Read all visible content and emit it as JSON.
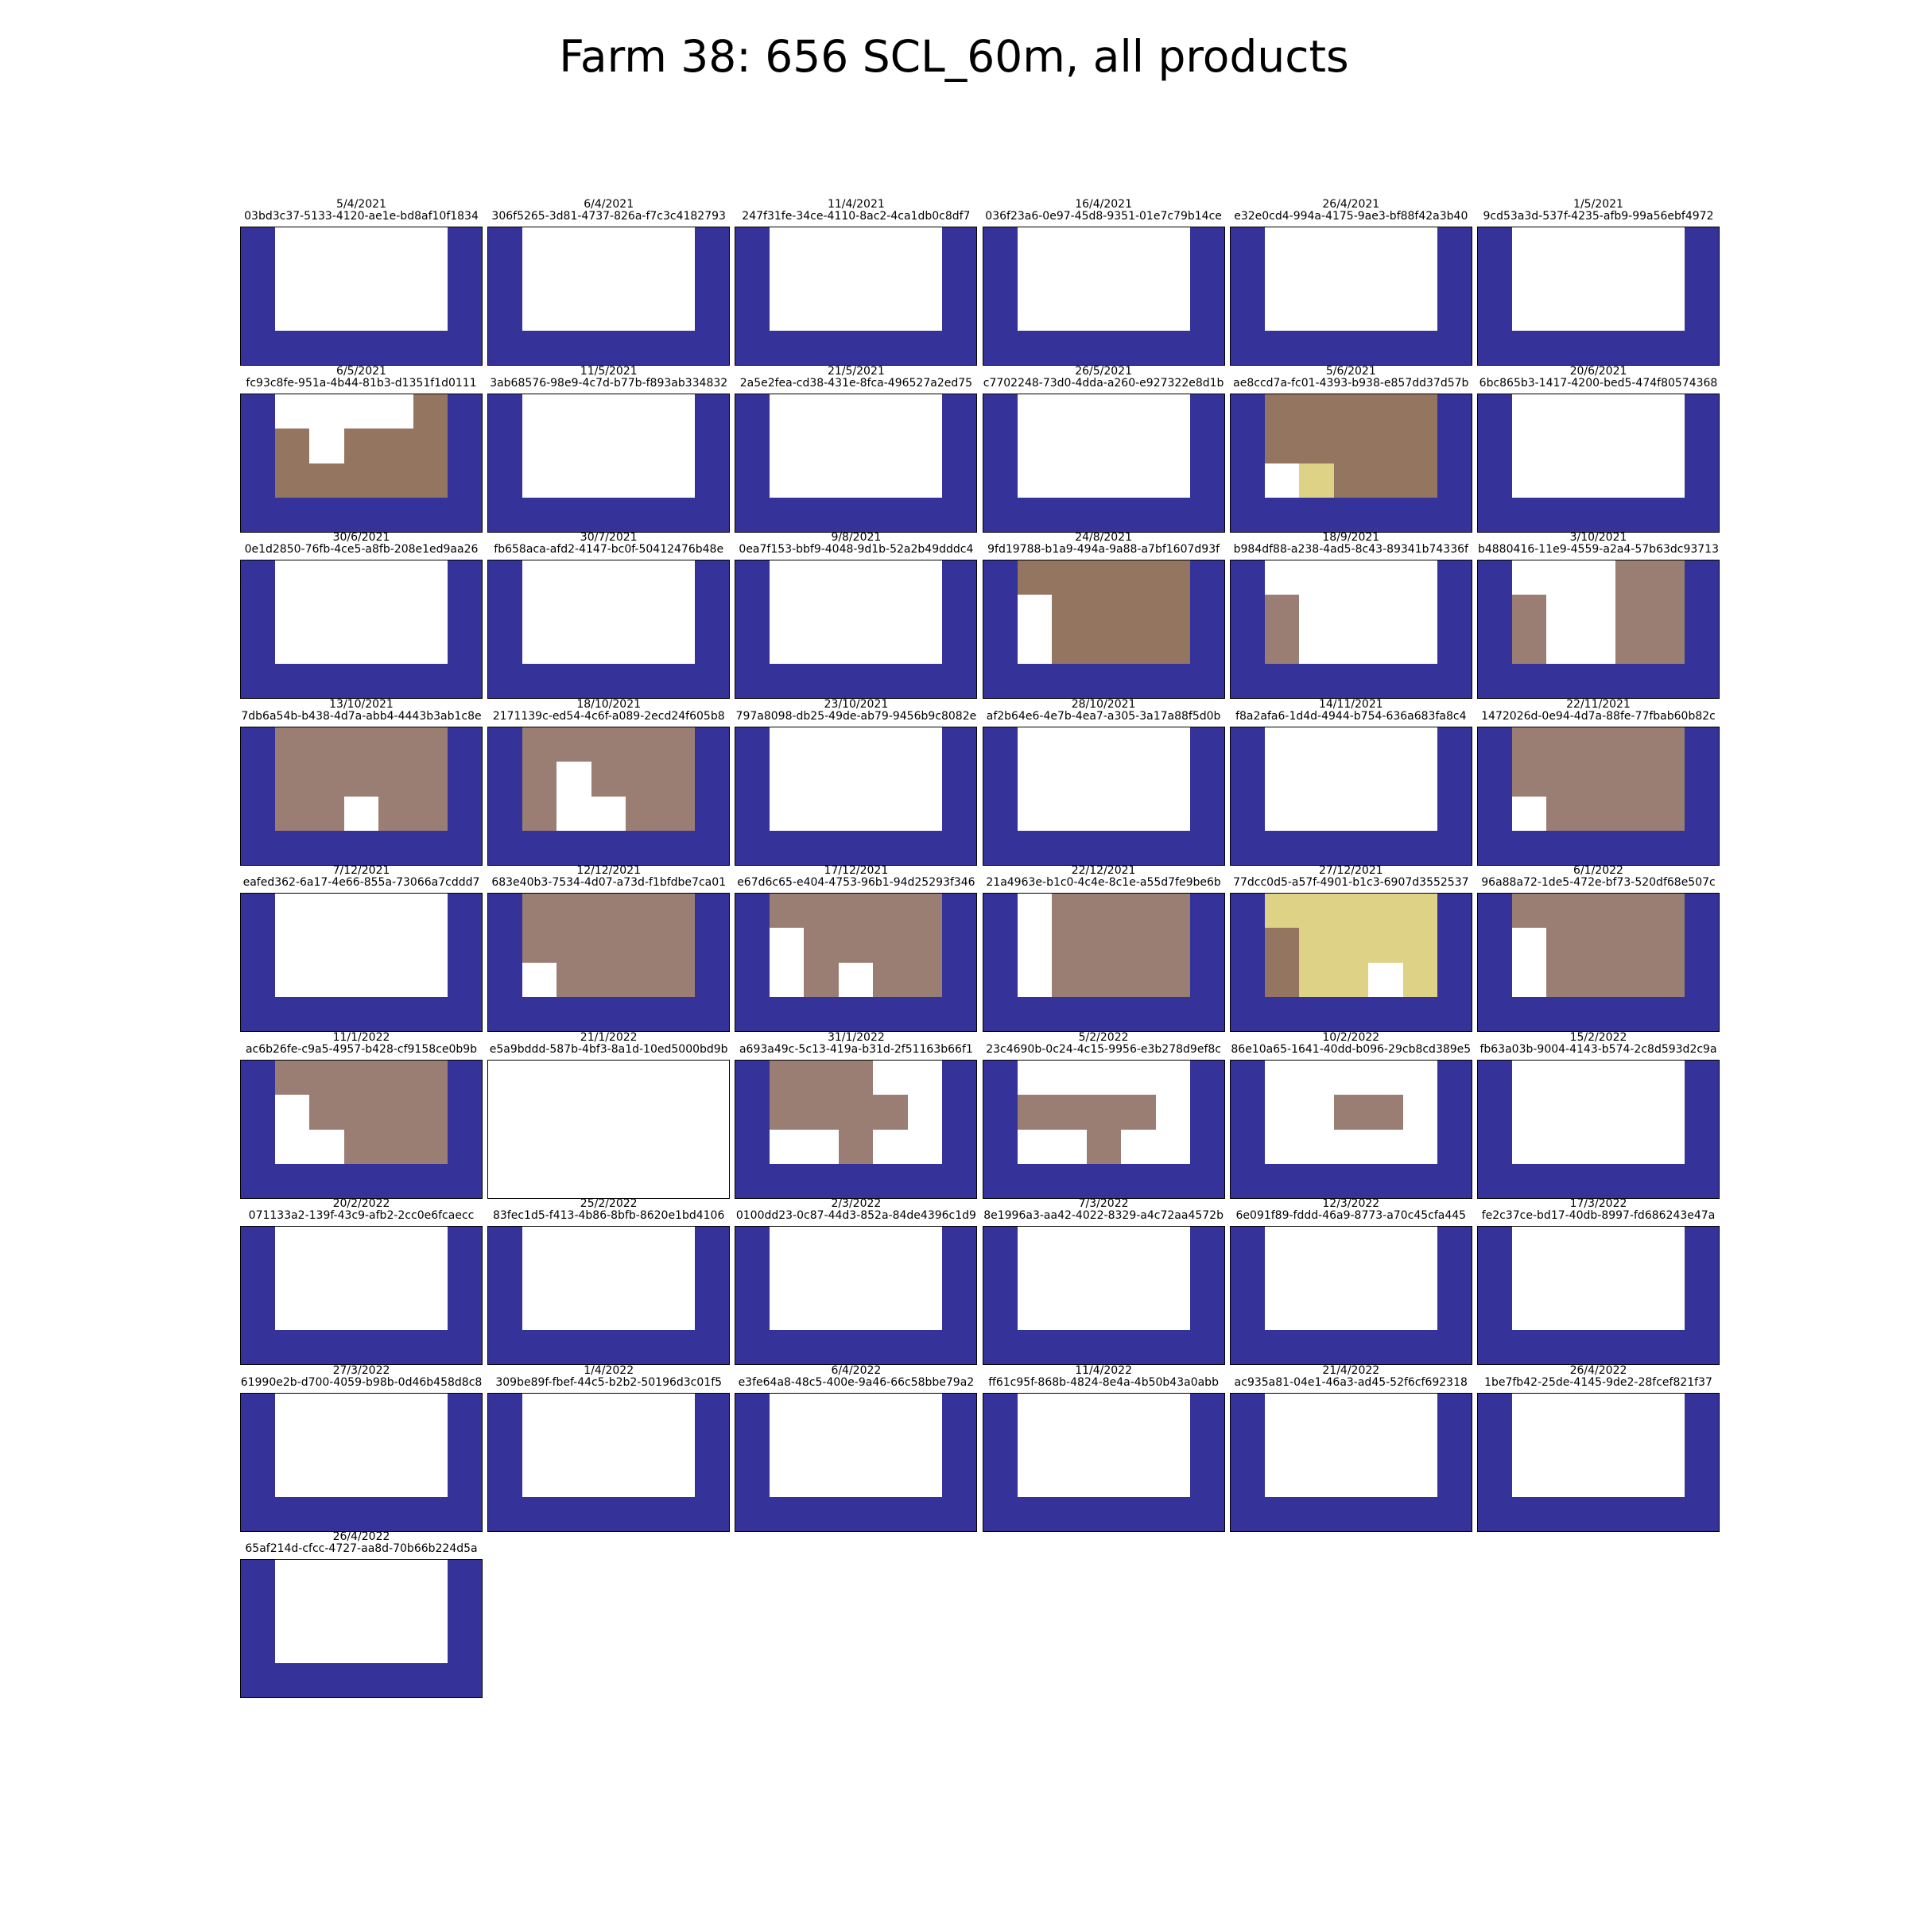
{
  "title": "Farm 38: 656 SCL_60m, all products",
  "colors": {
    "no_data": "#353399",
    "background": "#ffffff",
    "saturated_or_defective": "#ffffff",
    "bare_soil": "#947560",
    "unclassified": "#9b7e73",
    "vegetation_or_cloud_shadow": "#ddd286",
    "frame": "#000000"
  },
  "chart_data": {
    "type": "heatmap",
    "title": "Farm 38: 656 SCL_60m, all products",
    "layout": {
      "columns": 6,
      "total_panels": 49
    },
    "grid_size": {
      "rows": 4,
      "cols": 7
    },
    "legend": "none",
    "color_key": {
      "N": "no_data",
      "W": "background",
      "B": "bare_soil",
      "U": "unclassified",
      "Y": "vegetation_or_cloud_shadow"
    },
    "panels": [
      {
        "date": "5/4/2021",
        "id": "03bd3c37-5133-4120-ae1e-bd8af10f1834",
        "grid": [
          "NWWWWWN",
          "NWWWWWN",
          "NWWWWWN",
          "NNNNNNN"
        ]
      },
      {
        "date": "6/4/2021",
        "id": "306f5265-3d81-4737-826a-f7c3c4182793",
        "grid": [
          "NWWWWWN",
          "NWWWWWN",
          "NWWWWWN",
          "NNNNNNN"
        ]
      },
      {
        "date": "11/4/2021",
        "id": "247f31fe-34ce-4110-8ac2-4ca1db0c8df7",
        "grid": [
          "NWWWWWN",
          "NWWWWWN",
          "NWWWWWN",
          "NNNNNNN"
        ]
      },
      {
        "date": "16/4/2021",
        "id": "036f23a6-0e97-45d8-9351-01e7c79b14ce",
        "grid": [
          "NWWWWWN",
          "NWWWWWN",
          "NWWWWWN",
          "NNNNNNN"
        ]
      },
      {
        "date": "26/4/2021",
        "id": "e32e0cd4-994a-4175-9ae3-bf88f42a3b40",
        "grid": [
          "NWWWWWN",
          "NWWWWWN",
          "NWWWWWN",
          "NNNNNNN"
        ]
      },
      {
        "date": "1/5/2021",
        "id": "9cd53a3d-537f-4235-afb9-99a56ebf4972",
        "grid": [
          "NWWWWWN",
          "NWWWWWN",
          "NWWWWWN",
          "NNNNNNN"
        ]
      },
      {
        "date": "6/5/2021",
        "id": "fc93c8fe-951a-4b44-81b3-d1351f1d0111",
        "grid": [
          "NWWWWBN",
          "NBWBBBN",
          "NBBBBBN",
          "NNNNNNN"
        ]
      },
      {
        "date": "11/5/2021",
        "id": "3ab68576-98e9-4c7d-b77b-f893ab334832",
        "grid": [
          "NWWWWWN",
          "NWWWWWN",
          "NWWWWWN",
          "NNNNNNN"
        ]
      },
      {
        "date": "21/5/2021",
        "id": "2a5e2fea-cd38-431e-8fca-496527a2ed75",
        "grid": [
          "NWWWWWN",
          "NWWWWWN",
          "NWWWWWN",
          "NNNNNNN"
        ]
      },
      {
        "date": "26/5/2021",
        "id": "c7702248-73d0-4dda-a260-e927322e8d1b",
        "grid": [
          "NWWWWWN",
          "NWWWWWN",
          "NWWWWWN",
          "NNNNNNN"
        ]
      },
      {
        "date": "5/6/2021",
        "id": "ae8ccd7a-fc01-4393-b938-e857dd37d57b",
        "grid": [
          "NBBBBBN",
          "NBBBBBN",
          "NWYBBBN",
          "NNNNNNN"
        ]
      },
      {
        "date": "20/6/2021",
        "id": "6bc865b3-1417-4200-bed5-474f80574368",
        "grid": [
          "NWWWWWN",
          "NWWWWWN",
          "NWWWWWN",
          "NNNNNNN"
        ]
      },
      {
        "date": "30/6/2021",
        "id": "0e1d2850-76fb-4ce5-a8fb-208e1ed9aa26",
        "grid": [
          "NWWWWWN",
          "NWWWWWN",
          "NWWWWWN",
          "NNNNNNN"
        ]
      },
      {
        "date": "30/7/2021",
        "id": "fb658aca-afd2-4147-bc0f-50412476b48e",
        "grid": [
          "NWWWWWN",
          "NWWWWWN",
          "NWWWWWN",
          "NNNNNNN"
        ]
      },
      {
        "date": "9/8/2021",
        "id": "0ea7f153-bbf9-4048-9d1b-52a2b49dddc4",
        "grid": [
          "NWWWWWN",
          "NWWWWWN",
          "NWWWWWN",
          "NNNNNNN"
        ]
      },
      {
        "date": "24/8/2021",
        "id": "9fd19788-b1a9-494a-9a88-a7bf1607d93f",
        "grid": [
          "NBBBBBN",
          "NWBBBBN",
          "NWBBBBN",
          "NNNNNNN"
        ]
      },
      {
        "date": "18/9/2021",
        "id": "b984df88-a238-4ad5-8c43-89341b74336f",
        "grid": [
          "NWWWWWN",
          "NUWWWWN",
          "NUWWWWN",
          "NNNNNNN"
        ]
      },
      {
        "date": "3/10/2021",
        "id": "b4880416-11e9-4559-a2a4-57b63dc93713",
        "grid": [
          "NWWWUUN",
          "NUWWUUN",
          "NUWWUUN",
          "NNNNNNN"
        ]
      },
      {
        "date": "13/10/2021",
        "id": "7db6a54b-b438-4d7a-abb4-4443b3ab1c8e",
        "grid": [
          "NUUUUUN",
          "NUUUUUN",
          "NUUWUUN",
          "NNNNNNN"
        ]
      },
      {
        "date": "18/10/2021",
        "id": "2171139c-ed54-4c6f-a089-2ecd24f605b8",
        "grid": [
          "NUUUUUN",
          "NUWUUUN",
          "NUWWUUN",
          "NNNNNNN"
        ]
      },
      {
        "date": "23/10/2021",
        "id": "797a8098-db25-49de-ab79-9456b9c8082e",
        "grid": [
          "NWWWWWN",
          "NWWWWWN",
          "NWWWWWN",
          "NNNNNNN"
        ]
      },
      {
        "date": "28/10/2021",
        "id": "af2b64e6-4e7b-4ea7-a305-3a17a88f5d0b",
        "grid": [
          "NWWWWWN",
          "NWWWWWN",
          "NWWWWWN",
          "NNNNNNN"
        ]
      },
      {
        "date": "14/11/2021",
        "id": "f8a2afa6-1d4d-4944-b754-636a683fa8c4",
        "grid": [
          "NWWWWWN",
          "NWWWWWN",
          "NWWWWWN",
          "NNNNNNN"
        ]
      },
      {
        "date": "22/11/2021",
        "id": "1472026d-0e94-4d7a-88fe-77fbab60b82c",
        "grid": [
          "NUUUUUN",
          "NUUUUUN",
          "NWUUUUN",
          "NNNNNNN"
        ]
      },
      {
        "date": "7/12/2021",
        "id": "eafed362-6a17-4e66-855a-73066a7cddd7",
        "grid": [
          "NWWWWWN",
          "NWWWWWN",
          "NWWWWWN",
          "NNNNNNN"
        ]
      },
      {
        "date": "12/12/2021",
        "id": "683e40b3-7534-4d07-a73d-f1bfdbe7ca01",
        "grid": [
          "NUUUUUN",
          "NUUUUUN",
          "NWUUUUN",
          "NNNNNNN"
        ]
      },
      {
        "date": "17/12/2021",
        "id": "e67d6c65-e404-4753-96b1-94d25293f346",
        "grid": [
          "NUUUUUN",
          "NWUUUUN",
          "NWUWUUN",
          "NNNNNNN"
        ]
      },
      {
        "date": "22/12/2021",
        "id": "21a4963e-b1c0-4c4e-8c1e-a55d7fe9be6b",
        "grid": [
          "NWUUUUN",
          "NWUUUUN",
          "NWUUUUN",
          "NNNNNNN"
        ]
      },
      {
        "date": "27/12/2021",
        "id": "77dcc0d5-a57f-4901-b1c3-6907d3552537",
        "grid": [
          "NYYYYYN",
          "NBYYYYN",
          "NBYYWYN",
          "NNNNNNN"
        ]
      },
      {
        "date": "6/1/2022",
        "id": "96a88a72-1de5-472e-bf73-520df68e507c",
        "grid": [
          "NUUUUUN",
          "NWUUUUN",
          "NWUUUUN",
          "NNNNNNN"
        ]
      },
      {
        "date": "11/1/2022",
        "id": "ac6b26fe-c9a5-4957-b428-cf9158ce0b9b",
        "grid": [
          "NUUUUUN",
          "NWUUUUN",
          "NWWUUUN",
          "NNNNNNN"
        ]
      },
      {
        "date": "21/1/2022",
        "id": "e5a9bddd-587b-4bf3-8a1d-10ed5000bd9b",
        "grid": [
          "WWWWWWW",
          "WWWWWWW",
          "WWWWWWW",
          "WWWWWWW"
        ]
      },
      {
        "date": "31/1/2022",
        "id": "a693a49c-5c13-419a-b31d-2f51163b66f1",
        "grid": [
          "NUUUWWN",
          "NUUUUWN",
          "NWWUWWN",
          "NNNNNNN"
        ]
      },
      {
        "date": "5/2/2022",
        "id": "23c4690b-0c24-4c15-9956-e3b278d9ef8c",
        "grid": [
          "NWWWWWN",
          "NUUUUWN",
          "NWWUWWN",
          "NNNNNNN"
        ]
      },
      {
        "date": "10/2/2022",
        "id": "86e10a65-1641-40dd-b096-29cb8cd389e5",
        "grid": [
          "NWWWWWN",
          "NWWUUWN",
          "NWWWWWN",
          "NNNNNNN"
        ]
      },
      {
        "date": "15/2/2022",
        "id": "fb63a03b-9004-4143-b574-2c8d593d2c9a",
        "grid": [
          "NWWWWWN",
          "NWWWWWN",
          "NWWWWWN",
          "NNNNNNN"
        ]
      },
      {
        "date": "20/2/2022",
        "id": "071133a2-139f-43c9-afb2-2cc0e6fcaecc",
        "grid": [
          "NWWWWWN",
          "NWWWWWN",
          "NWWWWWN",
          "NNNNNNN"
        ]
      },
      {
        "date": "25/2/2022",
        "id": "83fec1d5-f413-4b86-8bfb-8620e1bd4106",
        "grid": [
          "NWWWWWN",
          "NWWWWWN",
          "NWWWWWN",
          "NNNNNNN"
        ]
      },
      {
        "date": "2/3/2022",
        "id": "0100dd23-0c87-44d3-852a-84de4396c1d9",
        "grid": [
          "NWWWWWN",
          "NWWWWWN",
          "NWWWWWN",
          "NNNNNNN"
        ]
      },
      {
        "date": "7/3/2022",
        "id": "8e1996a3-aa42-4022-8329-a4c72aa4572b",
        "grid": [
          "NWWWWWN",
          "NWWWWWN",
          "NWWWWWN",
          "NNNNNNN"
        ]
      },
      {
        "date": "12/3/2022",
        "id": "6e091f89-fddd-46a9-8773-a70c45cfa445",
        "grid": [
          "NWWWWWN",
          "NWWWWWN",
          "NWWWWWN",
          "NNNNNNN"
        ]
      },
      {
        "date": "17/3/2022",
        "id": "fe2c37ce-bd17-40db-8997-fd686243e47a",
        "grid": [
          "NWWWWWN",
          "NWWWWWN",
          "NWWWWWN",
          "NNNNNNN"
        ]
      },
      {
        "date": "27/3/2022",
        "id": "61990e2b-d700-4059-b98b-0d46b458d8c8",
        "grid": [
          "NWWWWWN",
          "NWWWWWN",
          "NWWWWWN",
          "NNNNNNN"
        ]
      },
      {
        "date": "1/4/2022",
        "id": "309be89f-fbef-44c5-b2b2-50196d3c01f5",
        "grid": [
          "NWWWWWN",
          "NWWWWWN",
          "NWWWWWN",
          "NNNNNNN"
        ]
      },
      {
        "date": "6/4/2022",
        "id": "e3fe64a8-48c5-400e-9a46-66c58bbe79a2",
        "grid": [
          "NWWWWWN",
          "NWWWWWN",
          "NWWWWWN",
          "NNNNNNN"
        ]
      },
      {
        "date": "11/4/2022",
        "id": "ff61c95f-868b-4824-8e4a-4b50b43a0abb",
        "grid": [
          "NWWWWWN",
          "NWWWWWN",
          "NWWWWWN",
          "NNNNNNN"
        ]
      },
      {
        "date": "21/4/2022",
        "id": "ac935a81-04e1-46a3-ad45-52f6cf692318",
        "grid": [
          "NWWWWWN",
          "NWWWWWN",
          "NWWWWWN",
          "NNNNNNN"
        ]
      },
      {
        "date": "26/4/2022",
        "id": "1be7fb42-25de-4145-9de2-28fcef821f37",
        "grid": [
          "NWWWWWN",
          "NWWWWWN",
          "NWWWWWN",
          "NNNNNNN"
        ]
      },
      {
        "date": "26/4/2022",
        "id": "65af214d-cfcc-4727-aa8d-70b66b224d5a",
        "grid": [
          "NWWWWWN",
          "NWWWWWN",
          "NWWWWWN",
          "NNNNNNN"
        ]
      }
    ]
  }
}
